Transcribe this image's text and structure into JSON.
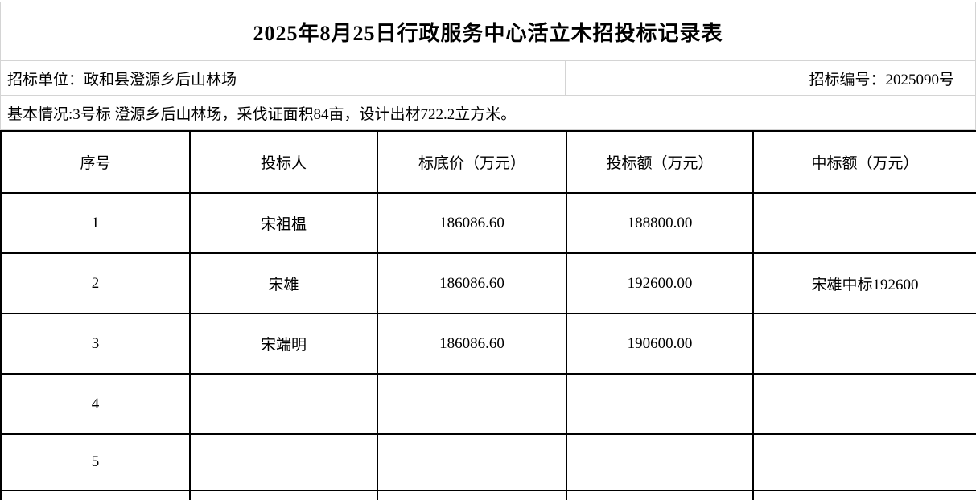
{
  "page": {
    "title": "2025年8月25日行政服务中心活立木招投标记录表"
  },
  "info": {
    "tender_unit": "招标单位：政和县澄源乡后山林场",
    "tender_number": "招标编号：2025090号",
    "basic_info": "基本情况:3号标 澄源乡后山林场，采伐证面积84亩，设计出材722.2立方米。"
  },
  "table": {
    "headers": [
      "序号",
      "投标人",
      "标底价（万元）",
      "投标额（万元）",
      "中标额（万元）"
    ],
    "rows": [
      [
        "1",
        "宋祖榅",
        "186086.60",
        "188800.00",
        ""
      ],
      [
        "2",
        "宋雄",
        "186086.60",
        "192600.00",
        "宋雄中标192600"
      ],
      [
        "3",
        "宋端明",
        "186086.60",
        "190600.00",
        ""
      ],
      [
        "4",
        "",
        "",
        "",
        ""
      ],
      [
        "5",
        "",
        "",
        "",
        ""
      ],
      [
        "",
        "",
        "",
        "",
        ""
      ]
    ]
  },
  "colors": {
    "grid_light": "#d4d4d4",
    "table_border": "#000000",
    "background": "#ffffff",
    "text": "#000000"
  }
}
